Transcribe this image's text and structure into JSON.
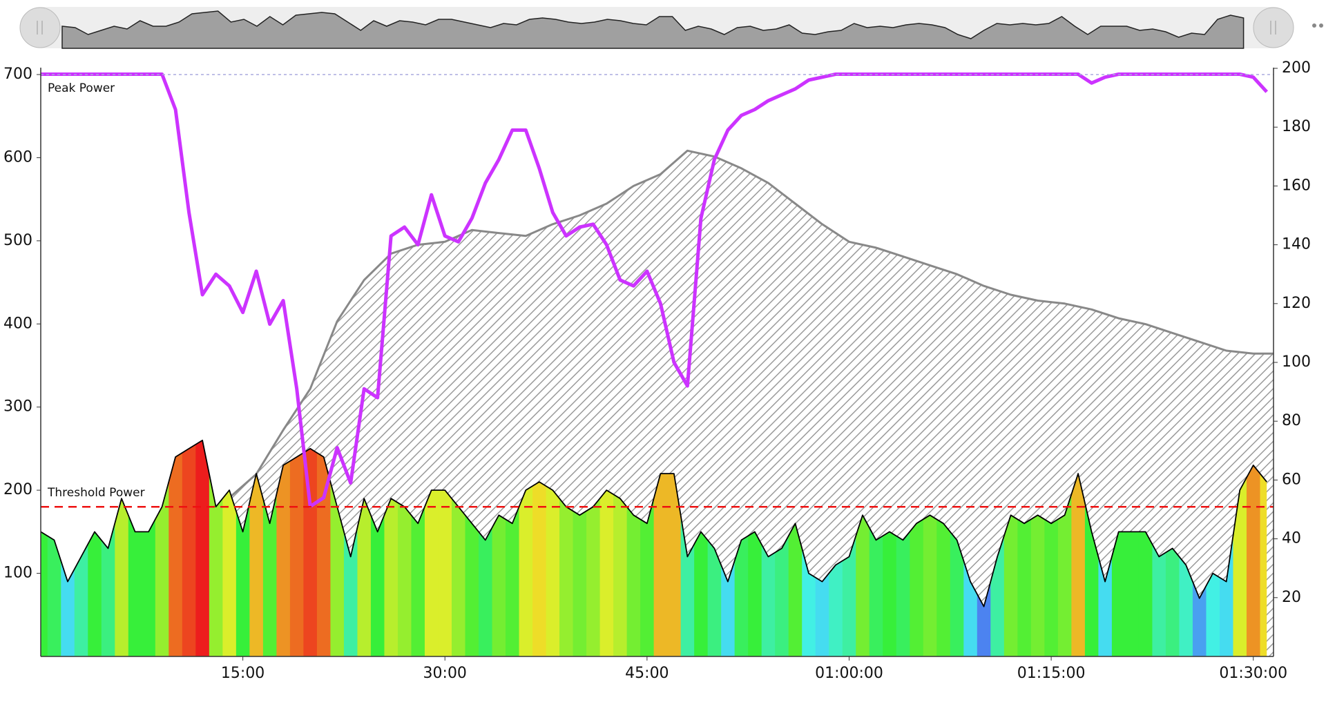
{
  "chart_data": {
    "type": "line",
    "x": [
      0,
      1,
      2,
      3,
      4,
      5,
      6,
      7,
      8,
      9,
      10,
      11,
      12,
      13,
      14,
      15,
      16,
      17,
      18,
      19,
      20,
      21,
      22,
      23,
      24,
      25,
      26,
      27,
      28,
      29,
      30,
      31,
      32,
      33,
      34,
      35,
      36,
      37,
      38,
      39,
      40,
      41,
      42,
      43,
      44,
      45,
      46,
      47,
      48,
      49,
      50,
      51,
      52,
      53,
      54,
      55,
      56,
      57,
      58,
      59,
      60,
      61,
      62,
      63,
      64,
      65,
      66,
      67,
      68,
      69,
      70,
      71,
      72,
      73,
      74,
      75,
      76,
      77,
      78,
      79,
      80,
      81,
      82,
      83,
      84,
      85,
      86,
      87,
      88,
      89,
      90,
      91
    ],
    "series": [
      {
        "color": "#000000",
        "fill": "zones",
        "values": [
          150,
          140,
          90,
          120,
          150,
          130,
          190,
          150,
          150,
          180,
          240,
          250,
          260,
          180,
          200,
          150,
          220,
          160,
          230,
          240,
          250,
          240,
          180,
          120,
          190,
          150,
          190,
          180,
          160,
          200,
          200,
          180,
          160,
          140,
          170,
          160,
          200,
          210,
          200,
          180,
          170,
          180,
          200,
          190,
          170,
          160,
          220,
          220,
          120,
          150,
          130,
          90,
          140,
          150,
          120,
          130,
          160,
          100,
          90,
          110,
          120,
          170,
          140,
          150,
          140,
          160,
          170,
          160,
          140,
          90,
          60,
          120,
          170,
          160,
          170,
          160,
          170,
          220,
          150,
          90,
          150,
          150,
          150,
          120,
          130,
          110,
          70,
          100,
          90,
          200,
          230,
          210
        ]
      },
      {
        "color": "#888888",
        "fill": "hatch",
        "axis": "y2",
        "x": [
          14,
          16,
          18,
          20,
          22,
          24,
          26,
          28,
          30,
          32,
          34,
          36,
          38,
          40,
          42,
          44,
          46,
          48,
          50,
          52,
          54,
          56,
          58,
          60,
          62,
          64,
          66,
          68,
          70,
          72,
          74,
          76,
          78,
          80,
          82,
          84,
          86,
          88,
          90,
          91.5
        ],
        "values": [
          54,
          62,
          77,
          91,
          114,
          128,
          137,
          140,
          141,
          145,
          144,
          143,
          147,
          150,
          154,
          160,
          164,
          172,
          170,
          166,
          161,
          154,
          147,
          141,
          139,
          136,
          133,
          130,
          126,
          123,
          121,
          120,
          118,
          115,
          113,
          110,
          107,
          104,
          103,
          103
        ]
      },
      {
        "color": "#cc33ff",
        "axis": "y2",
        "values": [
          198,
          198,
          198,
          198,
          198,
          198,
          198,
          198,
          198,
          198,
          186,
          151,
          123,
          130,
          126,
          117,
          131,
          113,
          121,
          91,
          51,
          54,
          71,
          59,
          91,
          88,
          143,
          146,
          140,
          157,
          143,
          141,
          149,
          161,
          169,
          179,
          179,
          166,
          151,
          143,
          146,
          147,
          140,
          128,
          126,
          131,
          120,
          100,
          92,
          149,
          169,
          179,
          184,
          186,
          189,
          191,
          193,
          196,
          197,
          198,
          198,
          198,
          198,
          198,
          198,
          198,
          198,
          198,
          198,
          198,
          198,
          198,
          198,
          198,
          198,
          198,
          198,
          198,
          195,
          197,
          198,
          198,
          198,
          198,
          198,
          198,
          198,
          198,
          198,
          198,
          197,
          192
        ]
      }
    ],
    "reference_lines": [
      {
        "label": "Peak Power",
        "value": 700,
        "color": "#2222dd",
        "line_color": "#aaaadd"
      },
      {
        "label": "Threshold Power",
        "value": 180,
        "color": "#ee1111",
        "line_color": "#ee1111"
      }
    ],
    "xlim": [
      0,
      91.5
    ],
    "xticks": [
      {
        "value": 15,
        "label": "15:00"
      },
      {
        "value": 30,
        "label": "30:00"
      },
      {
        "value": 45,
        "label": "45:00"
      },
      {
        "value": 60,
        "label": "01:00:00"
      },
      {
        "value": 75,
        "label": "01:15:00"
      },
      {
        "value": 90,
        "label": "01:30:00"
      }
    ],
    "ylim": [
      0,
      700
    ],
    "yticks": [
      100,
      200,
      300,
      400,
      500,
      600,
      700
    ],
    "y2lim": [
      0,
      200
    ],
    "y2ticks": [
      20,
      40,
      60,
      80,
      100,
      120,
      140,
      160,
      180,
      200
    ]
  }
}
